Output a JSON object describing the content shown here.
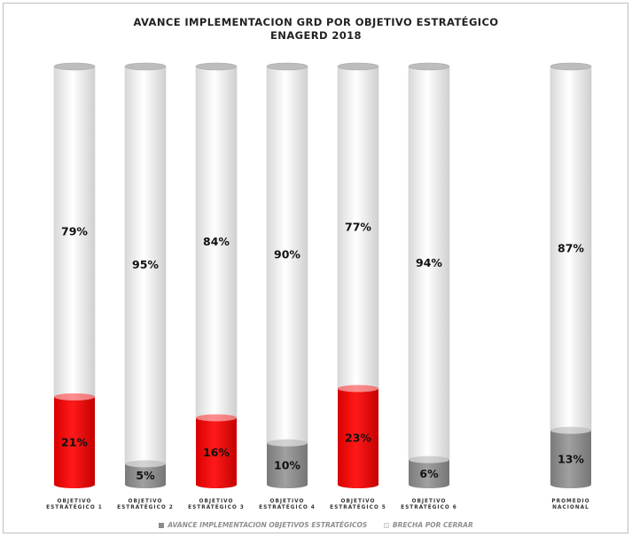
{
  "chart_data": {
    "type": "bar",
    "stacked": true,
    "title": "AVANCE IMPLEMENTACION GRD POR OBJETIVO ESTRATÉGICO",
    "subtitle": "ENAGERD 2018",
    "categories": [
      [
        "OBJETIVO",
        "ESTRATÉGICO 1"
      ],
      [
        "OBJETIVO",
        "ESTRATÉGICO 2"
      ],
      [
        "OBJETIVO",
        "ESTRATÉGICO 3"
      ],
      [
        "OBJETIVO",
        "ESTRATÉGICO 4"
      ],
      [
        "OBJETIVO",
        "ESTRATÉGICO 5"
      ],
      [
        "OBJETIVO",
        "ESTRATÉGICO 6"
      ],
      [
        "PROMEDIO",
        "NACIONAL"
      ]
    ],
    "series": [
      {
        "name": "AVANCE IMPLEMENTACION OBJETIVOS ESTRATÉGICOS",
        "values": [
          21,
          5,
          16,
          10,
          23,
          6,
          13
        ],
        "labels": [
          "21%",
          "5%",
          "16%",
          "10%",
          "23%",
          "6%",
          "13%"
        ]
      },
      {
        "name": "BRECHA POR CERRAR",
        "values": [
          79,
          95,
          84,
          90,
          77,
          94,
          87
        ],
        "labels": [
          "79%",
          "95%",
          "84%",
          "90%",
          "77%",
          "94%",
          "87%"
        ]
      }
    ],
    "ylim": [
      0,
      100
    ],
    "grid": false,
    "legend_position": "bottom",
    "point_colors": [
      "#ee0000",
      "#8c8c8c",
      "#ee0000",
      "#8c8c8c",
      "#ee0000",
      "#8c8c8c",
      "#8c8c8c"
    ],
    "colors": {
      "avance_default": "#8c8c8c",
      "avance_highlight": "#ee0000",
      "brecha": "#f2f2f2"
    }
  }
}
